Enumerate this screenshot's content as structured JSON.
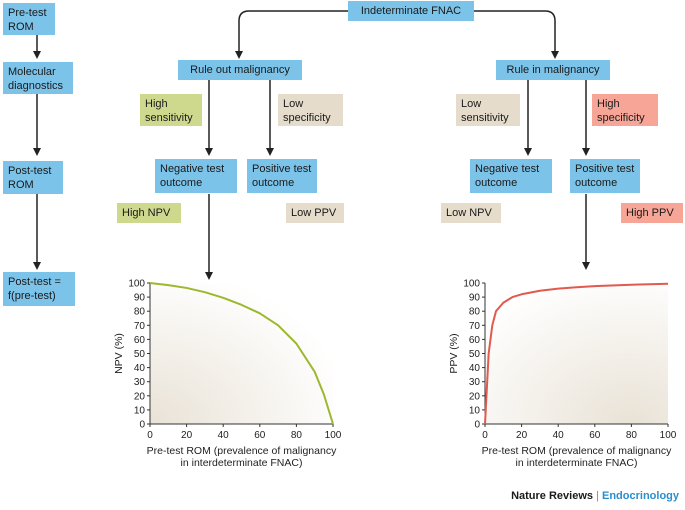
{
  "flow_left": {
    "pretest": "Pre-test ROM",
    "molecular": "Molecular diagnostics",
    "posttest": "Post-test ROM",
    "formula": "Post-test = f(pre-test)"
  },
  "top": {
    "fnac": "Indeterminate FNAC"
  },
  "rule_out": {
    "title": "Rule out malignancy",
    "high_sens": "High sensitivity",
    "low_spec": "Low specificity",
    "neg_outcome": "Negative test outcome",
    "pos_outcome": "Positive test outcome",
    "high_npv": "High NPV",
    "low_ppv": "Low PPV"
  },
  "rule_in": {
    "title": "Rule in malignancy",
    "low_sens": "Low sensitivity",
    "high_spec": "High specificity",
    "neg_outcome": "Negative test outcome",
    "pos_outcome": "Positive test outcome",
    "low_npv": "Low NPV",
    "high_ppv": "High PPV"
  },
  "colors": {
    "box": "#7cc3ea",
    "green_tag": "#cfd98e",
    "beige_tag": "#e6dccb",
    "red_tag": "#f6a597",
    "npv_curve": "#9bb82e",
    "ppv_curve": "#e05a4e"
  },
  "chart_data": [
    {
      "type": "line",
      "xlabel": "Pre-test ROM (prevalence of malignancy in interdeterminate FNAC)",
      "ylabel": "NPV (%)",
      "xlim": [
        0,
        100
      ],
      "ylim": [
        0,
        100
      ],
      "xticks": [
        "0",
        "20",
        "40",
        "60",
        "80",
        "100"
      ],
      "yticks": [
        "0",
        "10",
        "20",
        "30",
        "40",
        "50",
        "60",
        "70",
        "80",
        "90",
        "100"
      ],
      "series": [
        {
          "x": [
            0,
            10,
            20,
            30,
            40,
            50,
            60,
            70,
            80,
            90,
            95,
            100
          ],
          "y": [
            100,
            98.5,
            96.5,
            93.5,
            89.5,
            84.5,
            78.5,
            70,
            57,
            37,
            21,
            0
          ]
        }
      ]
    },
    {
      "type": "line",
      "xlabel": "Pre-test ROM (prevalence of malignancy in interdeterminate FNAC)",
      "ylabel": "PPV (%)",
      "xlim": [
        0,
        100
      ],
      "ylim": [
        0,
        100
      ],
      "xticks": [
        "0",
        "20",
        "40",
        "60",
        "80",
        "100"
      ],
      "yticks": [
        "0",
        "10",
        "20",
        "30",
        "40",
        "50",
        "60",
        "70",
        "80",
        "90",
        "100"
      ],
      "series": [
        {
          "x": [
            0,
            2,
            4,
            6,
            10,
            15,
            20,
            30,
            40,
            50,
            60,
            80,
            100
          ],
          "y": [
            0,
            50,
            70,
            80,
            86,
            90,
            92,
            94.5,
            96,
            97,
            97.8,
            98.8,
            99.5
          ]
        }
      ]
    }
  ],
  "brand": {
    "publisher": "Nature Reviews",
    "separator": "|",
    "journal": "Endocrinology"
  }
}
